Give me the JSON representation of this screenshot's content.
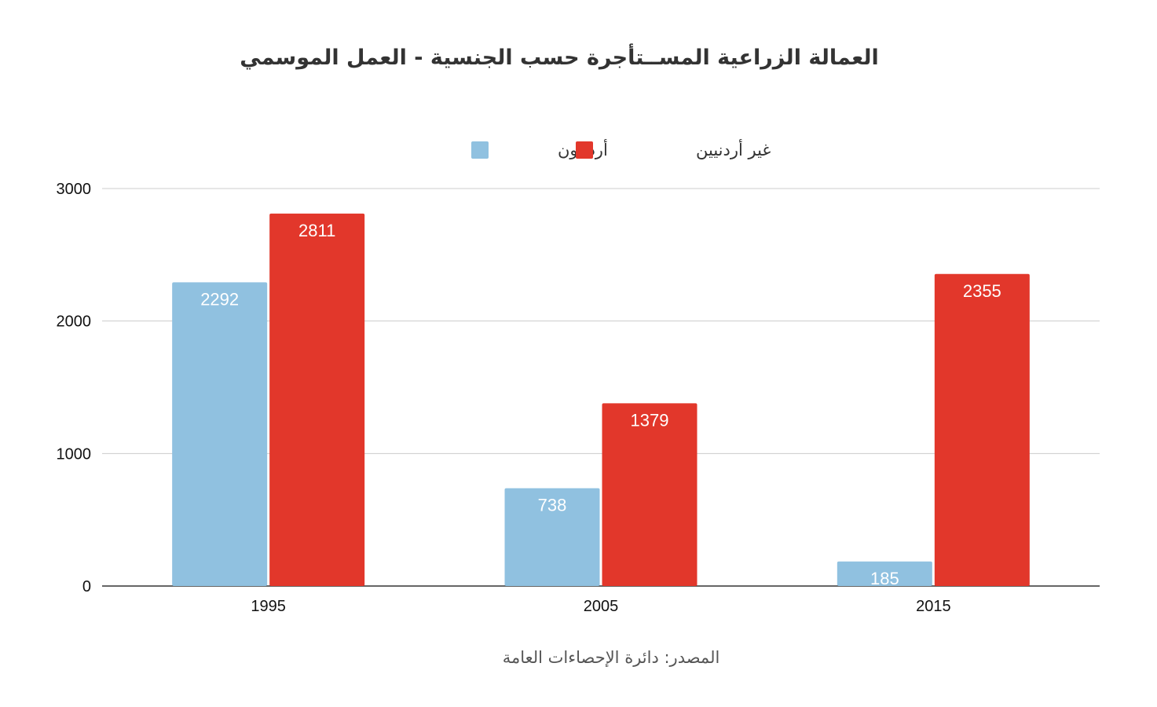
{
  "chart_data": {
    "type": "bar",
    "title": "العمالة الزراعية المســتأجرة حسب الجنسية - العمل الموسمي",
    "categories": [
      "1995",
      "2005",
      "2015"
    ],
    "series": [
      {
        "name": "أردنيون",
        "color": "#90c1e0",
        "values": [
          2292,
          738,
          185
        ]
      },
      {
        "name": "غير أردنيين",
        "color": "#e2372b",
        "values": [
          2811,
          1379,
          2355
        ]
      }
    ],
    "ylim": [
      0,
      3000
    ],
    "yticks": [
      "0",
      "1000",
      "2000",
      "3000"
    ],
    "grid": true,
    "legend_position": "top-center",
    "xlabel": "",
    "ylabel": "",
    "source": "المصدر: دائرة الإحصاءات العامة"
  }
}
